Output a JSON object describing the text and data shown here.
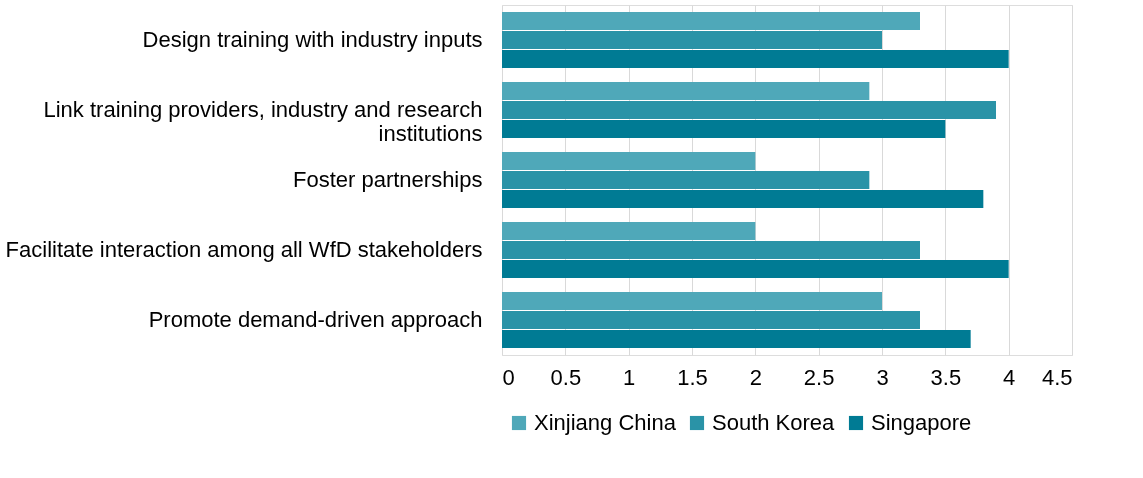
{
  "chart_data": {
    "type": "bar",
    "orientation": "horizontal",
    "categories": [
      "Design training with industry inputs",
      "Link training providers, industry and research institutions",
      "Foster partnerships",
      "Facilitate interaction among all WfD stakeholders",
      "Promote demand-driven approach"
    ],
    "series": [
      {
        "name": "Xinjiang China",
        "color": "#4fa8b9",
        "values": [
          3.3,
          2.9,
          2.0,
          2.0,
          3.0
        ]
      },
      {
        "name": "South Korea",
        "color": "#2a93a7",
        "values": [
          3.0,
          3.9,
          2.9,
          3.3,
          3.3
        ]
      },
      {
        "name": "Singapore",
        "color": "#007b94",
        "values": [
          4.0,
          3.5,
          3.8,
          4.0,
          3.7
        ]
      }
    ],
    "xlim": [
      0,
      4.5
    ],
    "xticks": [
      0,
      0.5,
      1,
      1.5,
      2,
      2.5,
      3,
      3.5,
      4,
      4.5
    ],
    "grid": "x",
    "legend": "bottom"
  }
}
